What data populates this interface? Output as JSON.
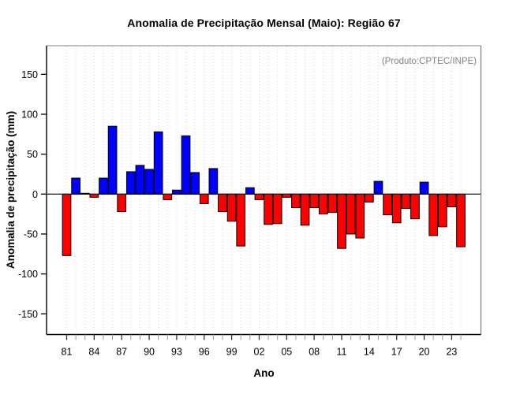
{
  "chart_data": {
    "type": "bar",
    "title": "Anomalia de Precipitação Mensal (Maio): Região 67",
    "annotation": "(Produto:CPTEC/INPE)",
    "xlabel": "Ano",
    "ylabel": "Anomalia de precipitação (mm)",
    "ylim": [
      -176,
      186
    ],
    "yticks": [
      -150,
      -100,
      -50,
      0,
      50,
      100,
      150
    ],
    "ytick_labels": [
      "-150",
      "-100",
      "-50",
      "0",
      "50",
      "100",
      "150"
    ],
    "xtick_labels": [
      "81",
      "84",
      "87",
      "90",
      "93",
      "96",
      "99",
      "02",
      "05",
      "08",
      "11",
      "14",
      "17",
      "20",
      "23"
    ],
    "xtick_label_step": 3,
    "grid": "vertical-dotted-per-year",
    "legend": "none",
    "years": [
      1981,
      1982,
      1983,
      1984,
      1985,
      1986,
      1987,
      1988,
      1989,
      1990,
      1991,
      1992,
      1993,
      1994,
      1995,
      1996,
      1997,
      1998,
      1999,
      2000,
      2001,
      2002,
      2003,
      2004,
      2005,
      2006,
      2007,
      2008,
      2009,
      2010,
      2011,
      2012,
      2013,
      2014,
      2015,
      2016,
      2017,
      2018,
      2019,
      2020,
      2021,
      2022,
      2023,
      2024
    ],
    "values": [
      -77,
      20,
      1,
      -4,
      20,
      85,
      -22,
      28,
      36,
      31,
      78,
      -7,
      5,
      73,
      27,
      -12,
      32,
      -22,
      -34,
      -65,
      8,
      -7,
      -38,
      -37,
      -4,
      -17,
      -39,
      -17,
      -25,
      -23,
      -68,
      -50,
      -55,
      -10,
      16,
      -26,
      -36,
      -18,
      -31,
      15,
      -52,
      -41,
      -16,
      -66
    ],
    "colors": {
      "positive": "#0000FF",
      "negative": "#FF0000",
      "bar_border": "#000000",
      "annotation_text": "#808080",
      "gridline": "#d9d9d9",
      "axis": "#000000",
      "box_top": "#999999",
      "box_right": "#777777"
    }
  }
}
